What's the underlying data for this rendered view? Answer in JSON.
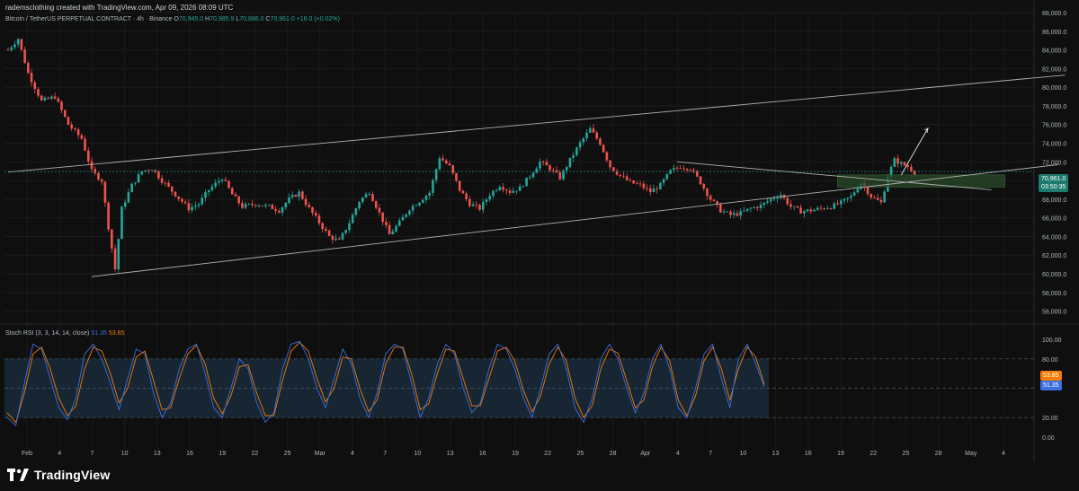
{
  "header": {
    "title": "rademsclothing created with TradingView.com, Apr 09, 2026 08:09 UTC"
  },
  "legend": {
    "symbol": "Bitcoin / TetherUS PERPETUAL CONTRACT · 4h · Binance",
    "o_label": "O",
    "o": "70,945.0",
    "h_label": "H",
    "h": "70,985.9",
    "l_label": "L",
    "l": "70,886.0",
    "c_label": "C",
    "c": "70,961.0",
    "change": "+16.0 (+0.02%)"
  },
  "price_tag": {
    "value": "70,961.0",
    "countdown": "03:50:35"
  },
  "rsi": {
    "label": "Stoch RSI (3, 3, 14, 14, close)",
    "k_value": "51.35",
    "d_value": "53.85",
    "levels": {
      "upper": 80,
      "middle": 50,
      "lower": 20
    },
    "y_ticks": [
      "100.00",
      "80.00",
      "20.00",
      "0.00"
    ]
  },
  "brand": {
    "name": "TradingView"
  },
  "colors": {
    "up": "#26a69a",
    "down": "#ef5350",
    "k_line": "#3b6fe0",
    "d_line": "#f57c00",
    "band": "#1a2a3a",
    "zone": "#2a4a2a",
    "trendline": "#b0b0b0"
  },
  "chart_data": {
    "type": "candlestick",
    "timeframe": "4h",
    "ylim": [
      55000,
      88000
    ],
    "y_ticks": [
      "56,000.0",
      "58,000.0",
      "60,000.0",
      "62,000.0",
      "64,000.0",
      "66,000.0",
      "68,000.0",
      "70,000.0",
      "72,000.0",
      "74,000.0",
      "76,000.0",
      "78,000.0",
      "80,000.0",
      "82,000.0",
      "84,000.0",
      "86,000.0",
      "88,000.0"
    ],
    "x_ticks": [
      "Feb",
      "4",
      "7",
      "10",
      "13",
      "16",
      "19",
      "22",
      "25",
      "Mar",
      "4",
      "7",
      "10",
      "13",
      "16",
      "19",
      "22",
      "25",
      "28",
      "Apr",
      "4",
      "7",
      "10",
      "13",
      "16",
      "19",
      "22",
      "25",
      "28",
      "May",
      "4"
    ],
    "price_path": [
      [
        0,
        84000
      ],
      [
        3,
        85200
      ],
      [
        6,
        81500
      ],
      [
        10,
        78500
      ],
      [
        14,
        79000
      ],
      [
        18,
        76000
      ],
      [
        22,
        74500
      ],
      [
        25,
        71000
      ],
      [
        28,
        70000
      ],
      [
        30,
        65000
      ],
      [
        32,
        60500
      ],
      [
        34,
        67000
      ],
      [
        37,
        69500
      ],
      [
        40,
        71000
      ],
      [
        43,
        71300
      ],
      [
        46,
        70000
      ],
      [
        50,
        68500
      ],
      [
        54,
        67000
      ],
      [
        57,
        67500
      ],
      [
        60,
        69000
      ],
      [
        64,
        70300
      ],
      [
        67,
        68500
      ],
      [
        70,
        67200
      ],
      [
        74,
        67500
      ],
      [
        78,
        67200
      ],
      [
        81,
        66800
      ],
      [
        84,
        68000
      ],
      [
        87,
        68700
      ],
      [
        90,
        67000
      ],
      [
        93,
        65500
      ],
      [
        96,
        64000
      ],
      [
        99,
        63500
      ],
      [
        102,
        65500
      ],
      [
        105,
        67800
      ],
      [
        108,
        68800
      ],
      [
        111,
        66500
      ],
      [
        114,
        64200
      ],
      [
        117,
        65500
      ],
      [
        120,
        67000
      ],
      [
        123,
        67800
      ],
      [
        126,
        68700
      ],
      [
        129,
        72500
      ],
      [
        132,
        71500
      ],
      [
        135,
        69000
      ],
      [
        138,
        67500
      ],
      [
        141,
        67000
      ],
      [
        144,
        68500
      ],
      [
        147,
        69500
      ],
      [
        150,
        68800
      ],
      [
        153,
        69200
      ],
      [
        156,
        70500
      ],
      [
        159,
        72000
      ],
      [
        162,
        71300
      ],
      [
        165,
        70300
      ],
      [
        168,
        72200
      ],
      [
        171,
        74000
      ],
      [
        174,
        75500
      ],
      [
        177,
        74000
      ],
      [
        180,
        71500
      ],
      [
        183,
        70500
      ],
      [
        186,
        69800
      ],
      [
        189,
        69500
      ],
      [
        192,
        68800
      ],
      [
        195,
        69500
      ],
      [
        198,
        71000
      ],
      [
        201,
        71500
      ],
      [
        204,
        71300
      ],
      [
        207,
        69800
      ],
      [
        210,
        68000
      ],
      [
        213,
        66800
      ],
      [
        216,
        66300
      ],
      [
        219,
        66500
      ],
      [
        222,
        67000
      ],
      [
        225,
        67300
      ],
      [
        228,
        68000
      ],
      [
        231,
        68500
      ],
      [
        234,
        67200
      ],
      [
        237,
        66700
      ],
      [
        240,
        66800
      ],
      [
        243,
        67000
      ],
      [
        246,
        67200
      ],
      [
        249,
        67600
      ],
      [
        252,
        68300
      ],
      [
        255,
        69800
      ],
      [
        258,
        68300
      ],
      [
        261,
        67600
      ],
      [
        263,
        70500
      ],
      [
        265,
        72200
      ],
      [
        267,
        71800
      ],
      [
        269,
        71500
      ],
      [
        271,
        70900
      ]
    ],
    "annotations": {
      "channel_upper": [
        [
          0,
          70900
        ],
        [
          316,
          81300
        ]
      ],
      "channel_lower": [
        [
          25,
          59700
        ],
        [
          314,
          71700
        ]
      ],
      "descending_line": [
        [
          200,
          72000
        ],
        [
          294,
          69000
        ]
      ],
      "projection_arrow": [
        [
          267,
          70600
        ],
        [
          275,
          75600
        ]
      ],
      "zone": {
        "x": [
          248,
          298
        ],
        "y": [
          69300,
          70600
        ]
      }
    },
    "stoch_rsi": {
      "k": [
        20,
        12,
        55,
        95,
        90,
        60,
        30,
        18,
        40,
        85,
        95,
        80,
        55,
        28,
        60,
        90,
        85,
        45,
        20,
        35,
        70,
        90,
        95,
        65,
        30,
        20,
        50,
        80,
        70,
        35,
        15,
        25,
        70,
        95,
        98,
        80,
        50,
        30,
        60,
        90,
        75,
        40,
        20,
        45,
        85,
        95,
        90,
        55,
        20,
        40,
        75,
        95,
        85,
        50,
        25,
        35,
        70,
        95,
        90,
        70,
        40,
        20,
        50,
        85,
        95,
        70,
        30,
        15,
        40,
        80,
        95,
        80,
        50,
        25,
        45,
        80,
        95,
        70,
        30,
        20,
        50,
        85,
        95,
        60,
        30,
        80,
        95,
        75,
        51
      ],
      "d": [
        25,
        15,
        45,
        85,
        92,
        70,
        40,
        22,
        32,
        70,
        92,
        88,
        65,
        35,
        50,
        82,
        88,
        58,
        28,
        30,
        60,
        85,
        94,
        75,
        40,
        24,
        42,
        72,
        74,
        45,
        22,
        22,
        58,
        88,
        97,
        88,
        60,
        36,
        50,
        82,
        80,
        50,
        26,
        38,
        75,
        92,
        92,
        65,
        28,
        34,
        65,
        90,
        88,
        60,
        32,
        32,
        60,
        88,
        92,
        78,
        48,
        26,
        42,
        75,
        92,
        78,
        40,
        20,
        32,
        70,
        90,
        86,
        58,
        30,
        38,
        72,
        92,
        78,
        38,
        22,
        42,
        78,
        92,
        70,
        38,
        70,
        92,
        82,
        53.85
      ]
    }
  }
}
